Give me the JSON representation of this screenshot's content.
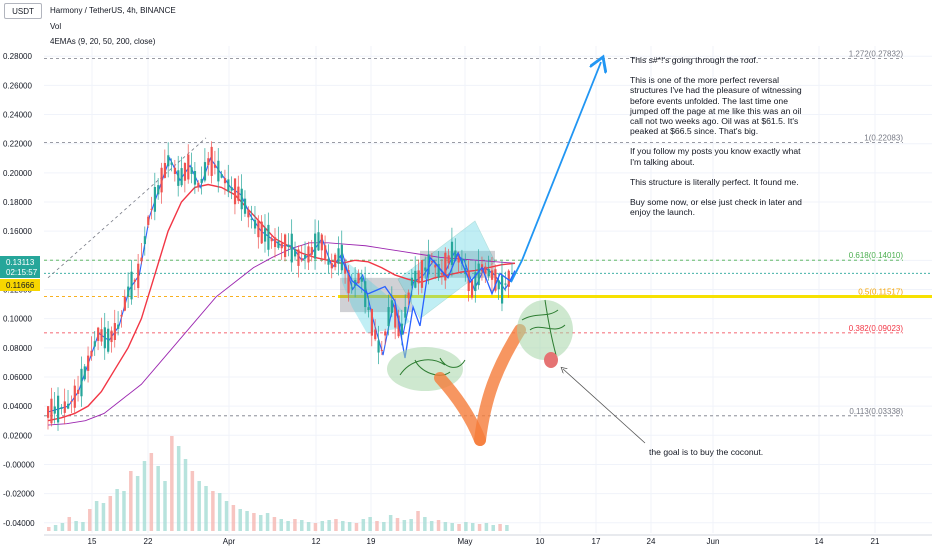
{
  "header": {
    "symbol_box": "USDT",
    "title": "Harmony / TetherUS, 4h, BINANCE",
    "vol_label": "Vol",
    "ema_label": "4EMAs (9, 20, 50, 200, close)"
  },
  "price_tags": {
    "current_price": "0.13113",
    "countdown": "02:15:57",
    "yellow_price": "0.11666",
    "current_color": "#26a69a",
    "yellow_color": "#f7d600"
  },
  "annotations": {
    "note_paragraphs": [
      "This s#*!'s going through the roof.",
      "This is one of the more perfect reversal structures I've had the pleasure of witnessing before events unfolded. The last time one jumped off the page at me like this was an oil call not two weeks ago. Oil was at $61.5. It's peaked at $66.5 since. That's big.",
      "If you follow my posts you know exactly what I'm talking about.",
      "This structure is literally perfect. It found me.",
      "Buy some now, or else just check in later and enjoy the launch."
    ],
    "goal_text": "the goal is to buy the coconut."
  },
  "colors": {
    "price_line": "#2962ff",
    "ema_red": "#f23645",
    "ema_purple": "#9c27b0",
    "fib_color": "#9598a1",
    "up_candle": "#26a69a",
    "down_candle": "#ef5350",
    "arrow_blue": "#2196f3",
    "orange_stroke": "#f57c3a",
    "tree_green": "#4caf50"
  },
  "chart_data": {
    "type": "line",
    "title": "Harmony / TetherUS, 4h, BINANCE",
    "y_ticks": [
      0.28,
      0.26,
      0.24,
      0.22,
      0.2,
      0.18,
      0.16,
      0.14,
      0.12,
      0.1,
      0.08,
      0.06,
      0.04,
      0.02,
      -0.0,
      -0.02,
      -0.04
    ],
    "y_tick_labels": [
      "0.28000",
      "0.26000",
      "0.24000",
      "0.22000",
      "0.20000",
      "0.18000",
      "0.16000",
      "0.14000",
      "0.12000",
      "0.10000",
      "0.08000",
      "0.06000",
      "0.04000",
      "0.02000",
      "-0.00000",
      "-0.02000",
      "-0.04000"
    ],
    "ylim": [
      -0.047,
      0.287
    ],
    "x_tick_labels": [
      "15",
      "22",
      "Apr",
      "12",
      "19",
      "May",
      "10",
      "17",
      "24",
      "Jun",
      "14",
      "21"
    ],
    "fib_levels": [
      {
        "label": "1.272(0.27832)",
        "value": 0.27832
      },
      {
        "label": "1(0.22083)",
        "value": 0.22083
      },
      {
        "label": "0.618(0.14010)",
        "value": 0.1401
      },
      {
        "label": "0.5(0.11517)",
        "value": 0.11517
      },
      {
        "label": "0.382(0.09023)",
        "value": 0.09023
      },
      {
        "label": "0.113(0.03338)",
        "value": 0.03338
      }
    ],
    "series": [
      {
        "values": [
          0.036,
          0.038,
          0.04,
          0.05,
          0.07,
          0.09,
          0.085,
          0.095,
          0.12,
          0.13,
          0.17,
          0.19,
          0.21,
          0.195,
          0.205,
          0.19,
          0.21,
          0.2,
          0.19,
          0.185,
          0.17,
          0.16,
          0.155,
          0.15,
          0.15,
          0.14,
          0.145,
          0.155,
          0.135,
          0.145,
          0.12,
          0.13,
          0.1,
          0.075,
          0.11,
          0.09,
          0.125,
          0.13,
          0.14,
          0.13,
          0.145,
          0.14,
          0.12,
          0.135,
          0.13,
          0.12,
          0.131
        ]
      },
      {
        "values": [
          0.03,
          0.032,
          0.035,
          0.04,
          0.05,
          0.065,
          0.08,
          0.1,
          0.13,
          0.16,
          0.18,
          0.19,
          0.192,
          0.19,
          0.185,
          0.175,
          0.165,
          0.155,
          0.15,
          0.145,
          0.142,
          0.14,
          0.138,
          0.14,
          0.139,
          0.135,
          0.13,
          0.127,
          0.125,
          0.128,
          0.13,
          0.132,
          0.133,
          0.135,
          0.137,
          0.138
        ]
      },
      {
        "values": [
          0.027,
          0.028,
          0.03,
          0.035,
          0.045,
          0.055,
          0.07,
          0.085,
          0.1,
          0.115,
          0.125,
          0.135,
          0.142,
          0.148,
          0.152,
          0.152,
          0.151,
          0.15,
          0.148,
          0.146,
          0.144,
          0.142,
          0.141,
          0.14,
          0.139,
          0.138
        ]
      }
    ]
  }
}
